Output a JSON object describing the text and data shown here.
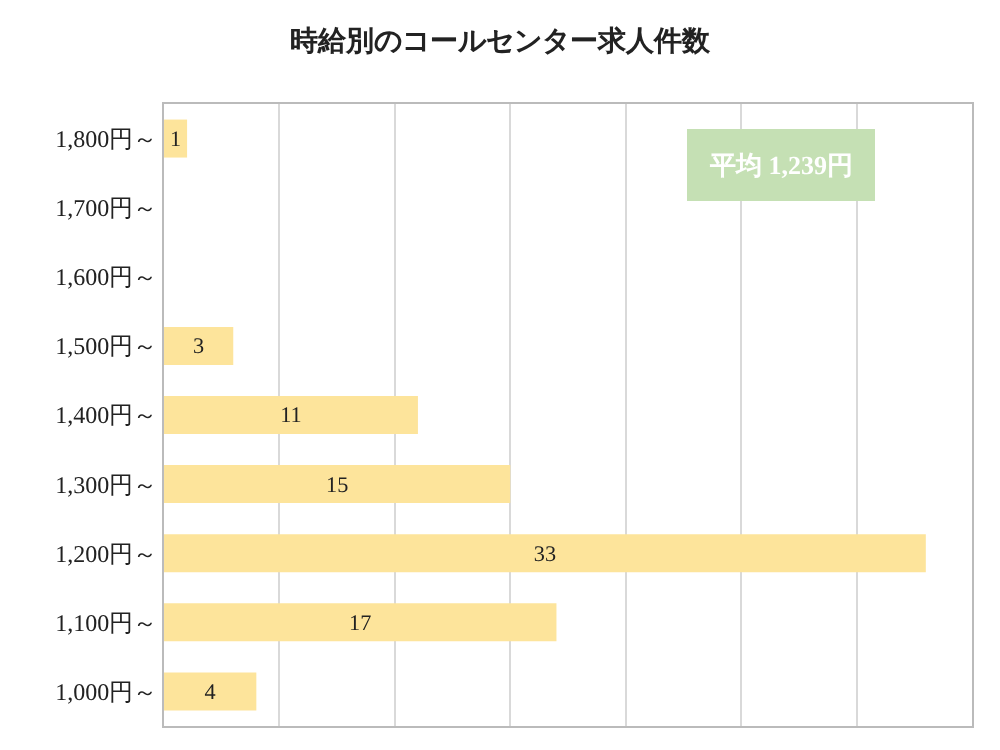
{
  "chart_data": {
    "type": "bar",
    "orientation": "horizontal",
    "title": "時給別のコールセンター求人件数",
    "categories": [
      "1,800円～",
      "1,700円～",
      "1,600円～",
      "1,500円～",
      "1,400円～",
      "1,300円～",
      "1,200円～",
      "1,100円～",
      "1,000円～"
    ],
    "values": [
      1,
      null,
      null,
      3,
      11,
      15,
      33,
      17,
      4
    ],
    "color": "#fde49b",
    "xlim": [
      0,
      35
    ],
    "xticks": [
      {
        "value": 0,
        "label": null
      },
      {
        "value": 5,
        "label": null
      },
      {
        "value": 10,
        "label": null
      },
      {
        "value": 15,
        "label": null
      },
      {
        "value": 20,
        "label": null
      },
      {
        "value": 25,
        "label": null
      },
      {
        "value": 30,
        "label": null
      },
      {
        "value": 35,
        "label": null
      }
    ],
    "tick_labels": "y",
    "grid": "x",
    "data_labels": true,
    "legend": false,
    "annotations": [
      "平均 1,239円"
    ]
  }
}
